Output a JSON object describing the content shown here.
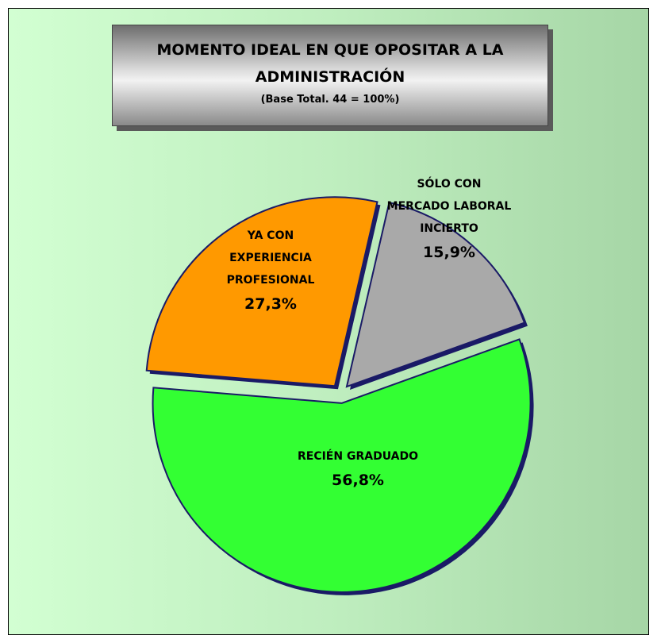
{
  "chart_data": {
    "type": "pie",
    "title": "MOMENTO IDEAL EN QUE OPOSITAR A LA ADMINISTRACIÓN",
    "subtitle": "(Base Total. 44 = 100%)",
    "categories": [
      "SÓLO CON MERCADO LABORAL INCIERTO",
      "RECIÉN GRADUADO",
      "YA CON EXPERIENCIA PROFESIONAL"
    ],
    "values": [
      15.9,
      56.8,
      27.3
    ],
    "value_labels": [
      "15,9%",
      "56,8%",
      "27,3%"
    ],
    "colors": [
      "#a9a9a9",
      "#33ff33",
      "#ff9900"
    ]
  }
}
